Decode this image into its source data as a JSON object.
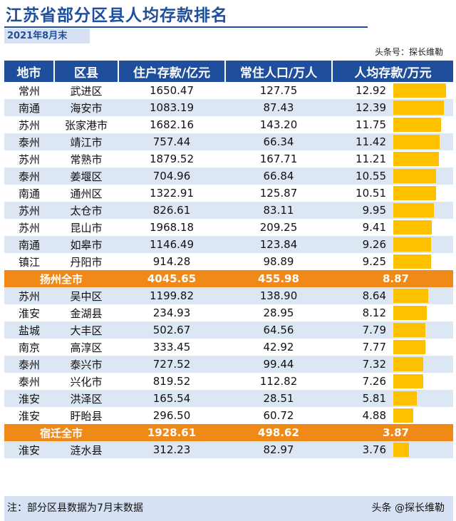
{
  "title": "江苏省部分区县人均存款排名",
  "date_label": "2021年8月末",
  "source": "头条号：探长维勒",
  "footnote": "注：部分区县数据为7月末数据",
  "footer_brand": "头条 @探长维勒",
  "colors": {
    "header_bg": "#1f4e9c",
    "stripe": "#dde6f3",
    "highlight_row": "#ef8a19",
    "bar": "#ffc000"
  },
  "chart_data": {
    "type": "table",
    "title": "江苏省部分区县人均存款排名",
    "columns": [
      "地市",
      "区县",
      "住户存款/亿元",
      "常住人口/万人",
      "人均存款/万元"
    ],
    "bar_column": "人均存款/万元",
    "bar_max": 12.92,
    "rows": [
      {
        "city": "常州",
        "district": "武进区",
        "deposit": "1650.47",
        "population": "127.75",
        "per_capita": "12.92",
        "highlight": false
      },
      {
        "city": "南通",
        "district": "海安市",
        "deposit": "1083.19",
        "population": "87.43",
        "per_capita": "12.39",
        "highlight": false
      },
      {
        "city": "苏州",
        "district": "张家港市",
        "deposit": "1682.16",
        "population": "143.20",
        "per_capita": "11.75",
        "highlight": false
      },
      {
        "city": "泰州",
        "district": "靖江市",
        "deposit": "757.44",
        "population": "66.34",
        "per_capita": "11.42",
        "highlight": false
      },
      {
        "city": "苏州",
        "district": "常熟市",
        "deposit": "1879.52",
        "population": "167.71",
        "per_capita": "11.21",
        "highlight": false
      },
      {
        "city": "泰州",
        "district": "姜堰区",
        "deposit": "704.96",
        "population": "66.84",
        "per_capita": "10.55",
        "highlight": false
      },
      {
        "city": "南通",
        "district": "通州区",
        "deposit": "1322.91",
        "population": "125.87",
        "per_capita": "10.51",
        "highlight": false
      },
      {
        "city": "苏州",
        "district": "太仓市",
        "deposit": "826.61",
        "population": "83.11",
        "per_capita": "9.95",
        "highlight": false
      },
      {
        "city": "苏州",
        "district": "昆山市",
        "deposit": "1968.18",
        "population": "209.25",
        "per_capita": "9.41",
        "highlight": false
      },
      {
        "city": "南通",
        "district": "如皋市",
        "deposit": "1146.49",
        "population": "123.84",
        "per_capita": "9.26",
        "highlight": false
      },
      {
        "city": "镇江",
        "district": "丹阳市",
        "deposit": "914.28",
        "population": "98.89",
        "per_capita": "9.25",
        "highlight": false
      },
      {
        "city": "扬州全市",
        "district": "",
        "deposit": "4045.65",
        "population": "455.98",
        "per_capita": "8.87",
        "highlight": true
      },
      {
        "city": "苏州",
        "district": "吴中区",
        "deposit": "1199.82",
        "population": "138.90",
        "per_capita": "8.64",
        "highlight": false
      },
      {
        "city": "淮安",
        "district": "金湖县",
        "deposit": "234.93",
        "population": "28.95",
        "per_capita": "8.12",
        "highlight": false
      },
      {
        "city": "盐城",
        "district": "大丰区",
        "deposit": "502.67",
        "population": "64.56",
        "per_capita": "7.79",
        "highlight": false
      },
      {
        "city": "南京",
        "district": "高淳区",
        "deposit": "333.45",
        "population": "42.92",
        "per_capita": "7.77",
        "highlight": false
      },
      {
        "city": "泰州",
        "district": "泰兴市",
        "deposit": "727.52",
        "population": "99.44",
        "per_capita": "7.32",
        "highlight": false
      },
      {
        "city": "泰州",
        "district": "兴化市",
        "deposit": "819.52",
        "population": "112.82",
        "per_capita": "7.26",
        "highlight": false
      },
      {
        "city": "淮安",
        "district": "洪泽区",
        "deposit": "165.54",
        "population": "28.51",
        "per_capita": "5.81",
        "highlight": false
      },
      {
        "city": "淮安",
        "district": "盱眙县",
        "deposit": "296.50",
        "population": "60.72",
        "per_capita": "4.88",
        "highlight": false
      },
      {
        "city": "宿迁全市",
        "district": "",
        "deposit": "1928.61",
        "population": "498.62",
        "per_capita": "3.87",
        "highlight": true
      },
      {
        "city": "淮安",
        "district": "涟水县",
        "deposit": "312.23",
        "population": "82.97",
        "per_capita": "3.76",
        "highlight": false
      }
    ]
  }
}
